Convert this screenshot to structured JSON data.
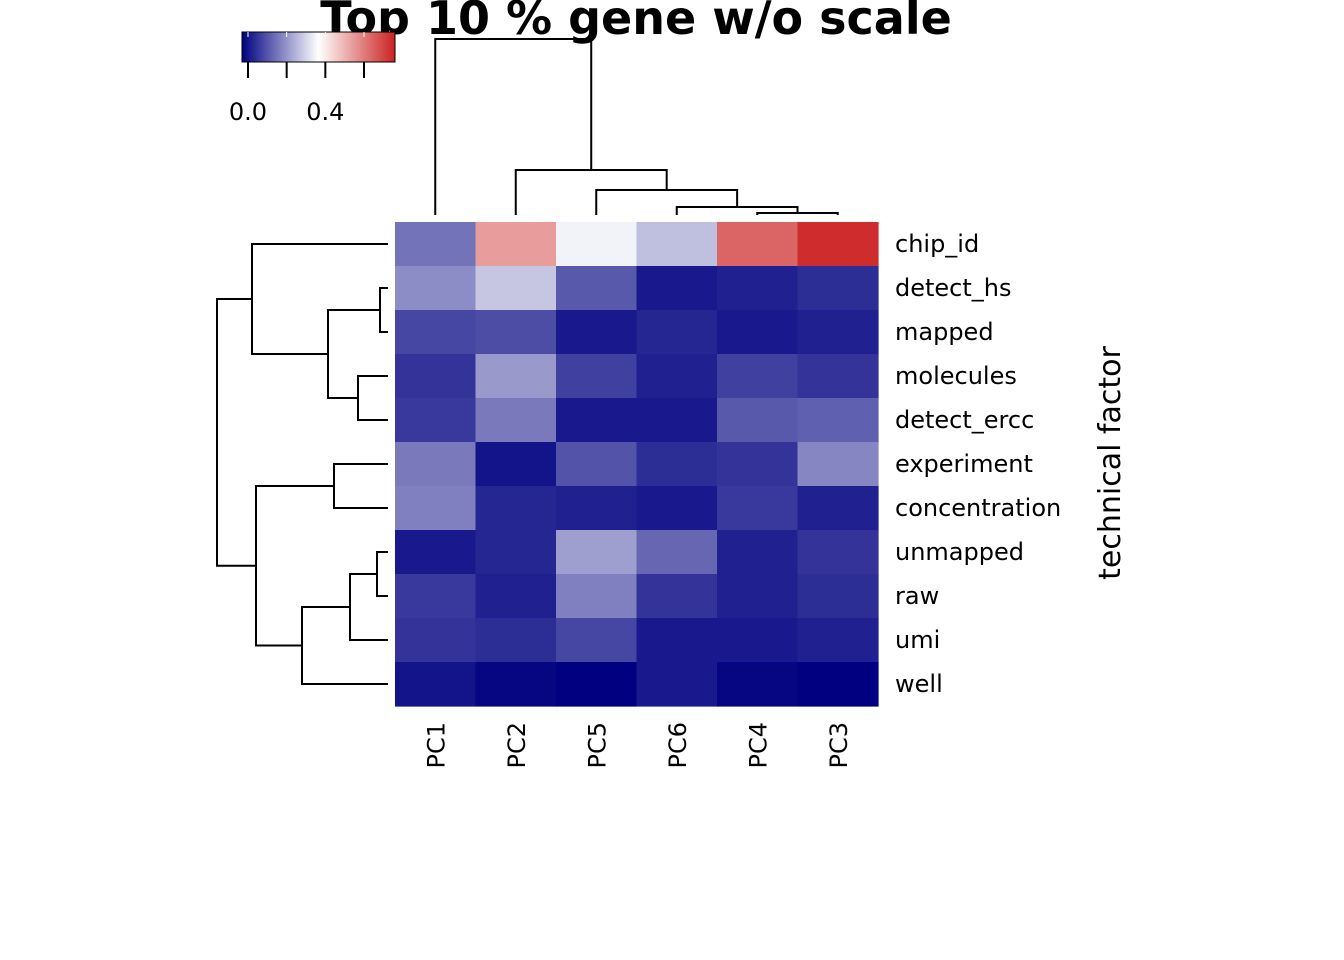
{
  "chart_data": {
    "type": "heatmap",
    "title": "Top 10 % gene w/o scale",
    "ylabel": "technical factor",
    "columns": [
      "PC1",
      "PC2",
      "PC5",
      "PC6",
      "PC4",
      "PC3"
    ],
    "rows": [
      "chip_id",
      "detect_hs",
      "mapped",
      "molecules",
      "detect_ercc",
      "experiment",
      "concentration",
      "unmapped",
      "raw",
      "umi",
      "well"
    ],
    "values": [
      [
        0.18,
        0.58,
        0.38,
        0.3,
        0.68,
        0.78
      ],
      [
        0.22,
        0.31,
        0.14,
        0.04,
        0.05,
        0.07
      ],
      [
        0.11,
        0.12,
        0.04,
        0.06,
        0.04,
        0.05
      ],
      [
        0.08,
        0.24,
        0.1,
        0.05,
        0.1,
        0.08
      ],
      [
        0.09,
        0.19,
        0.04,
        0.04,
        0.14,
        0.15
      ],
      [
        0.19,
        0.03,
        0.13,
        0.07,
        0.08,
        0.21
      ],
      [
        0.2,
        0.06,
        0.05,
        0.04,
        0.09,
        0.05
      ],
      [
        0.04,
        0.06,
        0.25,
        0.16,
        0.05,
        0.08
      ],
      [
        0.09,
        0.05,
        0.2,
        0.08,
        0.05,
        0.07
      ],
      [
        0.08,
        0.07,
        0.11,
        0.04,
        0.04,
        0.05
      ],
      [
        0.03,
        0.01,
        0.0,
        0.04,
        0.01,
        0.0
      ]
    ],
    "color_scale": {
      "range": [
        0.0,
        0.8
      ],
      "colors": [
        "#000080",
        "#ffffff",
        "#cc2222"
      ]
    },
    "legend": {
      "ticks": [
        0.0,
        0.2,
        0.4,
        0.6
      ],
      "tick_labels": [
        "0.0",
        "0.4"
      ],
      "tick_label_values": [
        0.0,
        0.4
      ],
      "placement": "top-left"
    }
  }
}
